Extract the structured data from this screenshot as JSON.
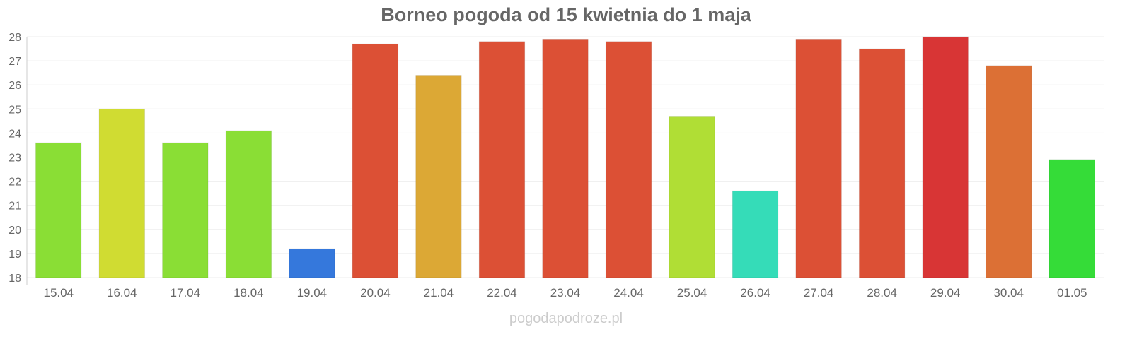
{
  "chart_data": {
    "type": "bar",
    "title": "Borneo pogoda od 15 kwietnia do 1 maja",
    "xlabel": "",
    "ylabel": "",
    "ylim": [
      18,
      28
    ],
    "yticks": [
      "18",
      "19",
      "20",
      "21",
      "22",
      "23",
      "24",
      "25",
      "26",
      "27",
      "28"
    ],
    "grid": true,
    "categories": [
      "15.04",
      "16.04",
      "17.04",
      "18.04",
      "19.04",
      "20.04",
      "21.04",
      "22.04",
      "23.04",
      "24.04",
      "25.04",
      "26.04",
      "27.04",
      "28.04",
      "29.04",
      "30.04",
      "01.05"
    ],
    "values": [
      23.6,
      25.0,
      23.6,
      24.1,
      19.2,
      27.7,
      26.4,
      27.8,
      27.9,
      27.8,
      24.7,
      21.6,
      27.9,
      27.5,
      28.0,
      26.8,
      22.9
    ],
    "colors": [
      "#8ade35",
      "#d0dc32",
      "#8ade35",
      "#8ade35",
      "#3578dc",
      "#dc5035",
      "#dca835",
      "#dc5035",
      "#dc5035",
      "#dc5035",
      "#b0de35",
      "#35dcb8",
      "#dc5035",
      "#dc5035",
      "#d83535",
      "#dc7035",
      "#35dc38"
    ]
  },
  "footer": "pogodapodroze.pl"
}
